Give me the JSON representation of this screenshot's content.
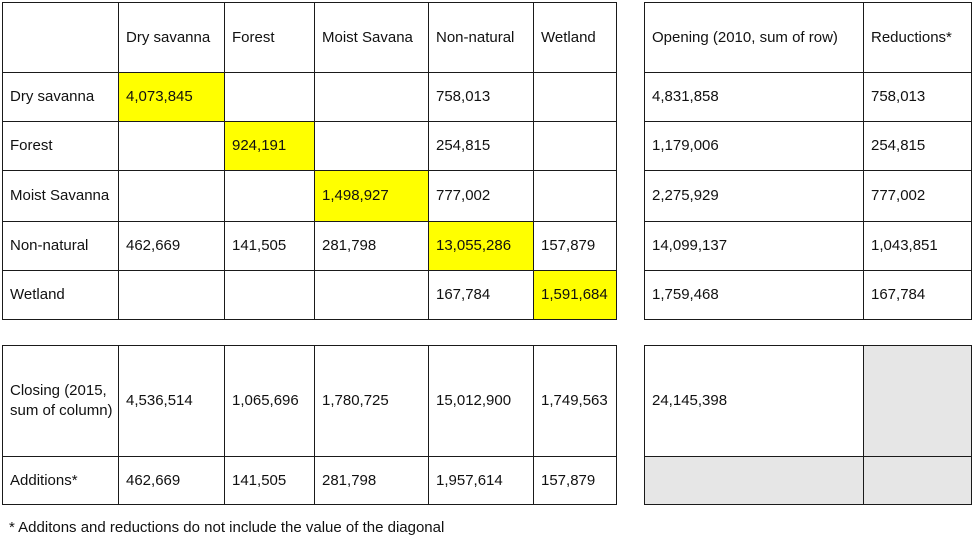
{
  "header": {
    "columns": [
      "Dry savanna",
      "Forest",
      "Moist Savana",
      "Non-natural",
      "Wetland"
    ],
    "opening": "Opening (2010, sum of row)",
    "reductions": "Reductions*"
  },
  "rows": [
    {
      "label": "Dry savanna",
      "cells": [
        "4,073,845",
        "",
        "",
        "758,013",
        ""
      ],
      "opening": "4,831,858",
      "reductions": "758,013"
    },
    {
      "label": "Forest",
      "cells": [
        "",
        "924,191",
        "",
        "254,815",
        ""
      ],
      "opening": "1,179,006",
      "reductions": "254,815"
    },
    {
      "label": "Moist Savanna",
      "cells": [
        "",
        "",
        "1,498,927",
        "777,002",
        ""
      ],
      "opening": "2,275,929",
      "reductions": "777,002"
    },
    {
      "label": "Non-natural",
      "cells": [
        "462,669",
        "141,505",
        "281,798",
        "13,055,286",
        "157,879"
      ],
      "opening": "14,099,137",
      "reductions": "1,043,851"
    },
    {
      "label": "Wetland",
      "cells": [
        "",
        "",
        "",
        "167,784",
        "1,591,684"
      ],
      "opening": "1,759,468",
      "reductions": "167,784"
    }
  ],
  "closing": {
    "label": "Closing (2015, sum of column)",
    "cells": [
      "4,536,514",
      "1,065,696",
      "1,780,725",
      "15,012,900",
      "1,749,563"
    ],
    "total": "24,145,398"
  },
  "additions": {
    "label": "Additions*",
    "cells": [
      "462,669",
      "141,505",
      "281,798",
      "1,957,614",
      "157,879"
    ]
  },
  "footnote": "* Additons and reductions do not include the value of the diagonal",
  "colors": {
    "diagonal_highlight": "#ffff00",
    "empty_shade": "#e6e6e6",
    "border": "#1a1a1a"
  }
}
